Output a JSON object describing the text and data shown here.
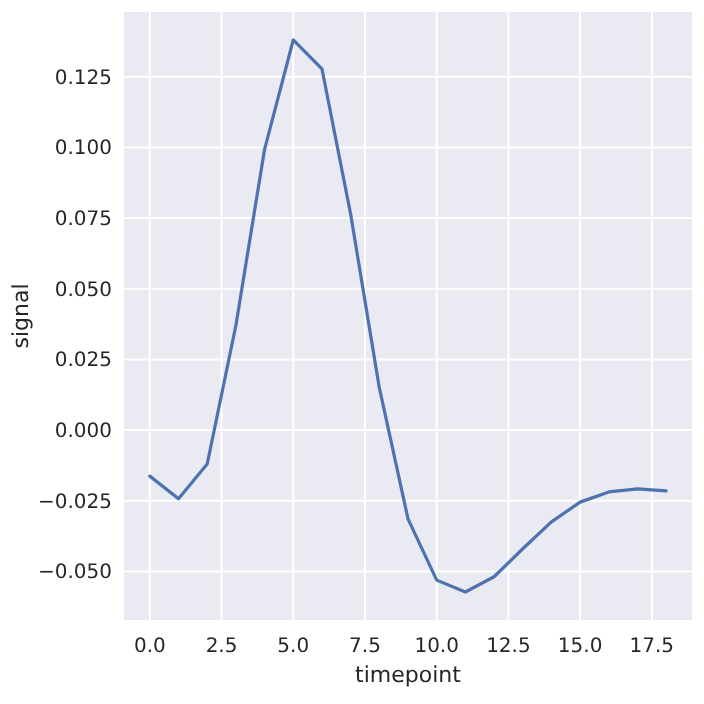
{
  "chart_data": {
    "type": "line",
    "xlabel": "timepoint",
    "ylabel": "signal",
    "x": [
      0,
      1,
      2,
      3,
      4,
      5,
      6,
      7,
      8,
      9,
      10,
      11,
      12,
      13,
      14,
      15,
      16,
      17,
      18
    ],
    "series": [
      {
        "color": "#4c72b0",
        "values": [
          -0.0163,
          -0.0243,
          -0.012,
          0.037,
          0.0993,
          0.138,
          0.1278,
          0.0764,
          0.015,
          -0.0314,
          -0.0531,
          -0.0573,
          -0.0519,
          -0.042,
          -0.0325,
          -0.0255,
          -0.0219,
          -0.0208,
          -0.0215
        ]
      }
    ],
    "xlim": [
      -0.9,
      18.9
    ],
    "xticks": [
      {
        "value": 0,
        "label": "0.0"
      },
      {
        "value": 2.5,
        "label": "2.5"
      },
      {
        "value": 5,
        "label": "5.0"
      },
      {
        "value": 7.5,
        "label": "7.5"
      },
      {
        "value": 10,
        "label": "10.0"
      },
      {
        "value": 12.5,
        "label": "12.5"
      },
      {
        "value": 15,
        "label": "15.0"
      },
      {
        "value": 17.5,
        "label": "17.5"
      }
    ],
    "ylim": [
      -0.0672,
      0.1479
    ],
    "yticks": [
      {
        "value": -0.05,
        "label": "−0.050"
      },
      {
        "value": -0.025,
        "label": "−0.025"
      },
      {
        "value": 0,
        "label": "0.000"
      },
      {
        "value": 0.025,
        "label": "0.025"
      },
      {
        "value": 0.05,
        "label": "0.050"
      },
      {
        "value": 0.075,
        "label": "0.075"
      },
      {
        "value": 0.1,
        "label": "0.100"
      },
      {
        "value": 0.125,
        "label": "0.125"
      }
    ],
    "grid": true,
    "line_style": "solid",
    "marker": "none"
  }
}
